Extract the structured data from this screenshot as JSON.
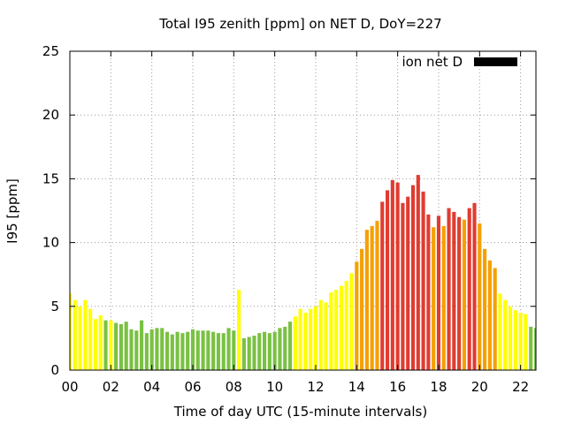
{
  "chart_data": {
    "type": "bar",
    "title": "Total I95 zenith [ppm] on NET D, DoY=227",
    "xlabel": "Time of day UTC (15-minute intervals)",
    "ylabel": "I95 [ppm]",
    "xlim": [
      0,
      22.75
    ],
    "ylim": [
      0,
      25
    ],
    "xticks": [
      0,
      2,
      4,
      6,
      8,
      10,
      12,
      14,
      16,
      18,
      20,
      22
    ],
    "xtick_labels": [
      "00",
      "02",
      "04",
      "06",
      "08",
      "10",
      "12",
      "14",
      "16",
      "18",
      "20",
      "22"
    ],
    "yticks": [
      0,
      5,
      10,
      15,
      20,
      25
    ],
    "ytick_labels": [
      "0",
      "5",
      "10",
      "15",
      "20",
      "25"
    ],
    "grid": true,
    "legend": {
      "label": "ion net D",
      "position": "top-right",
      "color": "#000000"
    },
    "level_colors": {
      "yellow": "#ffff00",
      "green": "#7ac143",
      "orange": "#f5a000",
      "red": "#e03c31"
    },
    "bars": [
      {
        "x": 0.0,
        "value": 6.0,
        "level": "yellow"
      },
      {
        "x": 0.25,
        "value": 5.5,
        "level": "yellow"
      },
      {
        "x": 0.5,
        "value": 5.0,
        "level": "yellow"
      },
      {
        "x": 0.75,
        "value": 5.5,
        "level": "yellow"
      },
      {
        "x": 1.0,
        "value": 4.8,
        "level": "yellow"
      },
      {
        "x": 1.25,
        "value": 4.0,
        "level": "yellow"
      },
      {
        "x": 1.5,
        "value": 4.3,
        "level": "yellow"
      },
      {
        "x": 1.75,
        "value": 3.9,
        "level": "green"
      },
      {
        "x": 2.0,
        "value": 3.9,
        "level": "yellow"
      },
      {
        "x": 2.25,
        "value": 3.7,
        "level": "green"
      },
      {
        "x": 2.5,
        "value": 3.6,
        "level": "green"
      },
      {
        "x": 2.75,
        "value": 3.8,
        "level": "green"
      },
      {
        "x": 3.0,
        "value": 3.2,
        "level": "green"
      },
      {
        "x": 3.25,
        "value": 3.1,
        "level": "green"
      },
      {
        "x": 3.5,
        "value": 3.9,
        "level": "green"
      },
      {
        "x": 3.75,
        "value": 2.9,
        "level": "green"
      },
      {
        "x": 4.0,
        "value": 3.2,
        "level": "green"
      },
      {
        "x": 4.25,
        "value": 3.3,
        "level": "green"
      },
      {
        "x": 4.5,
        "value": 3.3,
        "level": "green"
      },
      {
        "x": 4.75,
        "value": 3.0,
        "level": "green"
      },
      {
        "x": 5.0,
        "value": 2.8,
        "level": "green"
      },
      {
        "x": 5.25,
        "value": 3.0,
        "level": "green"
      },
      {
        "x": 5.5,
        "value": 2.9,
        "level": "green"
      },
      {
        "x": 5.75,
        "value": 3.0,
        "level": "green"
      },
      {
        "x": 6.0,
        "value": 3.2,
        "level": "green"
      },
      {
        "x": 6.25,
        "value": 3.1,
        "level": "green"
      },
      {
        "x": 6.5,
        "value": 3.1,
        "level": "green"
      },
      {
        "x": 6.75,
        "value": 3.1,
        "level": "green"
      },
      {
        "x": 7.0,
        "value": 3.0,
        "level": "green"
      },
      {
        "x": 7.25,
        "value": 2.9,
        "level": "green"
      },
      {
        "x": 7.5,
        "value": 2.9,
        "level": "green"
      },
      {
        "x": 7.75,
        "value": 3.3,
        "level": "green"
      },
      {
        "x": 8.0,
        "value": 3.1,
        "level": "green"
      },
      {
        "x": 8.25,
        "value": 6.3,
        "level": "yellow"
      },
      {
        "x": 8.5,
        "value": 2.5,
        "level": "green"
      },
      {
        "x": 8.75,
        "value": 2.6,
        "level": "green"
      },
      {
        "x": 9.0,
        "value": 2.7,
        "level": "green"
      },
      {
        "x": 9.25,
        "value": 2.9,
        "level": "green"
      },
      {
        "x": 9.5,
        "value": 3.0,
        "level": "green"
      },
      {
        "x": 9.75,
        "value": 2.9,
        "level": "green"
      },
      {
        "x": 10.0,
        "value": 3.0,
        "level": "green"
      },
      {
        "x": 10.25,
        "value": 3.3,
        "level": "green"
      },
      {
        "x": 10.5,
        "value": 3.4,
        "level": "green"
      },
      {
        "x": 10.75,
        "value": 3.8,
        "level": "green"
      },
      {
        "x": 11.0,
        "value": 4.2,
        "level": "yellow"
      },
      {
        "x": 11.25,
        "value": 4.8,
        "level": "yellow"
      },
      {
        "x": 11.5,
        "value": 4.5,
        "level": "yellow"
      },
      {
        "x": 11.75,
        "value": 4.8,
        "level": "yellow"
      },
      {
        "x": 12.0,
        "value": 5.0,
        "level": "yellow"
      },
      {
        "x": 12.25,
        "value": 5.5,
        "level": "yellow"
      },
      {
        "x": 12.5,
        "value": 5.3,
        "level": "yellow"
      },
      {
        "x": 12.75,
        "value": 6.1,
        "level": "yellow"
      },
      {
        "x": 13.0,
        "value": 6.3,
        "level": "yellow"
      },
      {
        "x": 13.25,
        "value": 6.6,
        "level": "yellow"
      },
      {
        "x": 13.5,
        "value": 7.0,
        "level": "yellow"
      },
      {
        "x": 13.75,
        "value": 7.6,
        "level": "yellow"
      },
      {
        "x": 14.0,
        "value": 8.5,
        "level": "orange"
      },
      {
        "x": 14.25,
        "value": 9.5,
        "level": "orange"
      },
      {
        "x": 14.5,
        "value": 11.0,
        "level": "orange"
      },
      {
        "x": 14.75,
        "value": 11.3,
        "level": "orange"
      },
      {
        "x": 15.0,
        "value": 11.7,
        "level": "orange"
      },
      {
        "x": 15.25,
        "value": 13.2,
        "level": "red"
      },
      {
        "x": 15.5,
        "value": 14.1,
        "level": "red"
      },
      {
        "x": 15.75,
        "value": 14.9,
        "level": "red"
      },
      {
        "x": 16.0,
        "value": 14.7,
        "level": "red"
      },
      {
        "x": 16.25,
        "value": 13.1,
        "level": "red"
      },
      {
        "x": 16.5,
        "value": 13.6,
        "level": "red"
      },
      {
        "x": 16.75,
        "value": 14.5,
        "level": "red"
      },
      {
        "x": 17.0,
        "value": 15.3,
        "level": "red"
      },
      {
        "x": 17.25,
        "value": 14.0,
        "level": "red"
      },
      {
        "x": 17.5,
        "value": 12.2,
        "level": "red"
      },
      {
        "x": 17.75,
        "value": 11.2,
        "level": "orange"
      },
      {
        "x": 18.0,
        "value": 12.1,
        "level": "red"
      },
      {
        "x": 18.25,
        "value": 11.3,
        "level": "orange"
      },
      {
        "x": 18.5,
        "value": 12.7,
        "level": "red"
      },
      {
        "x": 18.75,
        "value": 12.4,
        "level": "red"
      },
      {
        "x": 19.0,
        "value": 12.0,
        "level": "red"
      },
      {
        "x": 19.25,
        "value": 11.8,
        "level": "orange"
      },
      {
        "x": 19.5,
        "value": 12.7,
        "level": "red"
      },
      {
        "x": 19.75,
        "value": 13.1,
        "level": "red"
      },
      {
        "x": 20.0,
        "value": 11.5,
        "level": "orange"
      },
      {
        "x": 20.25,
        "value": 9.5,
        "level": "orange"
      },
      {
        "x": 20.5,
        "value": 8.6,
        "level": "orange"
      },
      {
        "x": 20.75,
        "value": 8.0,
        "level": "orange"
      },
      {
        "x": 21.0,
        "value": 6.0,
        "level": "yellow"
      },
      {
        "x": 21.25,
        "value": 5.5,
        "level": "yellow"
      },
      {
        "x": 21.5,
        "value": 5.0,
        "level": "yellow"
      },
      {
        "x": 21.75,
        "value": 4.7,
        "level": "yellow"
      },
      {
        "x": 22.0,
        "value": 4.5,
        "level": "yellow"
      },
      {
        "x": 22.25,
        "value": 4.4,
        "level": "yellow"
      },
      {
        "x": 22.5,
        "value": 3.4,
        "level": "green"
      },
      {
        "x": 22.75,
        "value": 3.3,
        "level": "green"
      }
    ]
  }
}
